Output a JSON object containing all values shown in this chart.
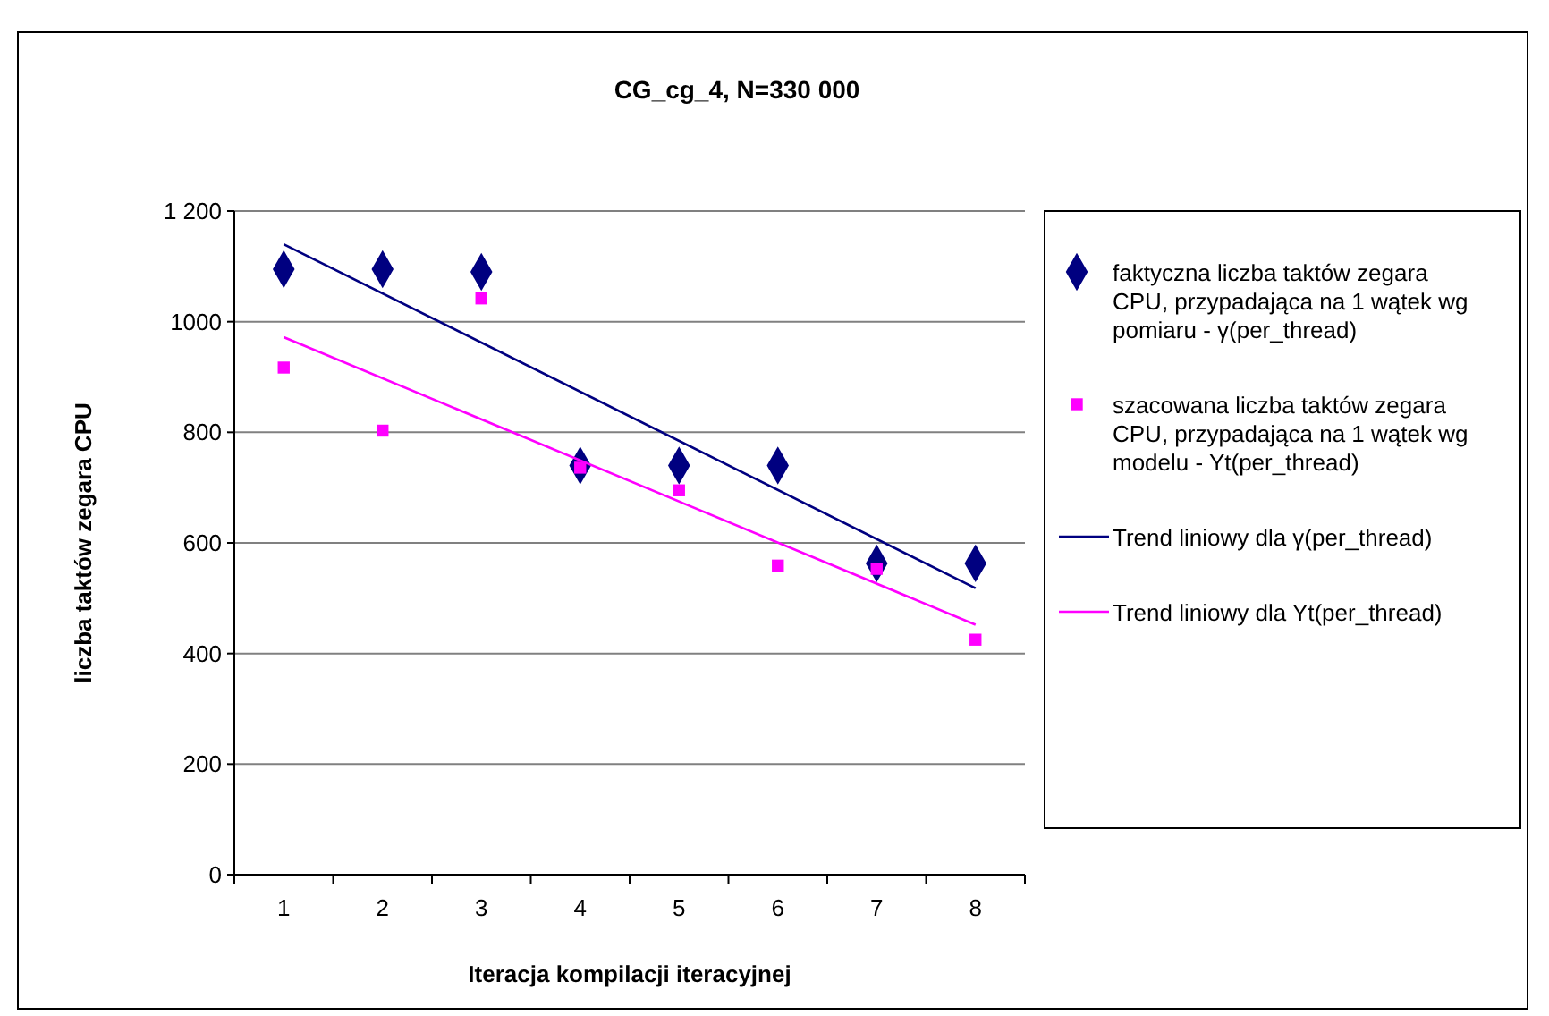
{
  "chart_data": {
    "type": "scatter",
    "title": "CG_cg_4, N=330 000",
    "xlabel": "Iteracja kompilacji iteracyjnej",
    "ylabel": "liczba taktów zegara CPU",
    "categories": [
      "1",
      "2",
      "3",
      "4",
      "5",
      "6",
      "7",
      "8"
    ],
    "series": [
      {
        "name": "faktyczna liczba taktów zegara CPU, przypadająca na 1 wątek wg pomiaru - γ(per_thread)",
        "color": "#000080",
        "marker": "diamond",
        "values": [
          1095,
          1095,
          1090,
          740,
          740,
          740,
          563,
          563
        ]
      },
      {
        "name": "szacowana liczba taktów zegara CPU, przypadająca na 1 wątek wg modelu - Yt(per_thread)",
        "color": "#ff00ff",
        "marker": "square",
        "values": [
          917,
          803,
          1042,
          736,
          695,
          559,
          553,
          425
        ]
      },
      {
        "name": "Trend liniowy dla γ(per_thread)",
        "type": "line",
        "color": "#000080",
        "x": [
          "1",
          "8"
        ],
        "values": [
          1140,
          518
        ]
      },
      {
        "name": "Trend liniowy dla Yt(per_thread)",
        "type": "line",
        "color": "#ff00ff",
        "x": [
          "1",
          "8"
        ],
        "values": [
          972,
          452
        ]
      }
    ],
    "ylim": [
      0,
      1200
    ],
    "yticks": [
      0,
      200,
      400,
      600,
      800,
      1000,
      {
        "value": 1200,
        "label": "1 200"
      }
    ],
    "grid": "y",
    "legend": "right"
  }
}
